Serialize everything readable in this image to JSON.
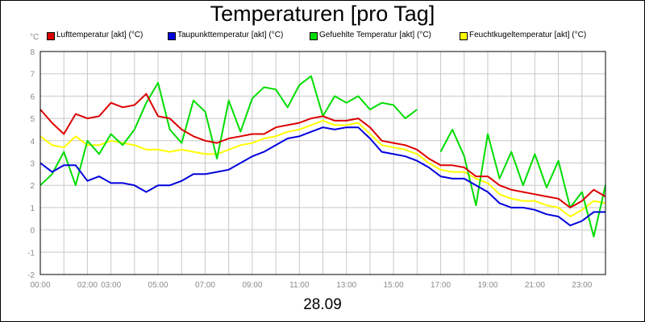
{
  "chart_data": {
    "type": "line",
    "title": "Temperaturen [pro Tag]",
    "unit_label": "°C",
    "date_label": "28.09",
    "ylim": [
      -2,
      8
    ],
    "y_ticks": [
      8,
      7,
      6,
      5,
      4,
      3,
      2,
      1,
      0,
      -1,
      -2
    ],
    "xlim_hours": [
      0,
      24
    ],
    "x_ticks": [
      {
        "hour": 0,
        "label": "00:00"
      },
      {
        "hour": 2,
        "label": "02:00"
      },
      {
        "hour": 3,
        "label": "03:00"
      },
      {
        "hour": 5,
        "label": "05:00"
      },
      {
        "hour": 7,
        "label": "07:00"
      },
      {
        "hour": 9,
        "label": "09:00"
      },
      {
        "hour": 11,
        "label": "11:00"
      },
      {
        "hour": 13,
        "label": "13:00"
      },
      {
        "hour": 15,
        "label": "15:00"
      },
      {
        "hour": 17,
        "label": "17:00"
      },
      {
        "hour": 19,
        "label": "19:00"
      },
      {
        "hour": 21,
        "label": "21:00"
      },
      {
        "hour": 23,
        "label": "23:00"
      }
    ],
    "grid": true,
    "series": [
      {
        "name": "Lufttemperatur [akt] (°C)",
        "color": "#dd0000",
        "hours": [
          0,
          0.5,
          1,
          1.5,
          2,
          2.5,
          3,
          3.5,
          4,
          4.5,
          5,
          5.5,
          6,
          6.5,
          7,
          7.5,
          8,
          8.5,
          9,
          9.5,
          10,
          10.5,
          11,
          11.5,
          12,
          12.5,
          13,
          13.5,
          14,
          14.5,
          15,
          15.5,
          16,
          16.5,
          17,
          17.5,
          18,
          18.5,
          19,
          19.5,
          20,
          20.5,
          21,
          21.5,
          22,
          22.5,
          23,
          23.5,
          24
        ],
        "values": [
          5.4,
          4.8,
          4.3,
          5.2,
          5.0,
          5.1,
          5.7,
          5.5,
          5.6,
          6.1,
          5.1,
          5.0,
          4.5,
          4.2,
          4.0,
          3.9,
          4.1,
          4.2,
          4.3,
          4.3,
          4.6,
          4.7,
          4.8,
          5.0,
          5.1,
          4.9,
          4.9,
          5.0,
          4.6,
          4.0,
          3.9,
          3.8,
          3.6,
          3.2,
          2.9,
          2.9,
          2.8,
          2.4,
          2.4,
          2.0,
          1.8,
          1.7,
          1.6,
          1.5,
          1.4,
          1.0,
          1.3,
          1.8,
          1.5
        ]
      },
      {
        "name": "Taupunkttemperatur [akt] (°C)",
        "color": "#0000dd",
        "hours": [
          0,
          0.5,
          1,
          1.5,
          2,
          2.5,
          3,
          3.5,
          4,
          4.5,
          5,
          5.5,
          6,
          6.5,
          7,
          7.5,
          8,
          8.5,
          9,
          9.5,
          10,
          10.5,
          11,
          11.5,
          12,
          12.5,
          13,
          13.5,
          14,
          14.5,
          15,
          15.5,
          16,
          16.5,
          17,
          17.5,
          18,
          18.5,
          19,
          19.5,
          20,
          20.5,
          21,
          21.5,
          22,
          22.5,
          23,
          23.5,
          24
        ],
        "values": [
          3.0,
          2.6,
          2.9,
          2.9,
          2.2,
          2.4,
          2.1,
          2.1,
          2.0,
          1.7,
          2.0,
          2.0,
          2.2,
          2.5,
          2.5,
          2.6,
          2.7,
          3.0,
          3.3,
          3.5,
          3.8,
          4.1,
          4.2,
          4.4,
          4.6,
          4.5,
          4.6,
          4.6,
          4.1,
          3.5,
          3.4,
          3.3,
          3.1,
          2.8,
          2.4,
          2.3,
          2.3,
          2.0,
          1.7,
          1.2,
          1.0,
          1.0,
          0.9,
          0.7,
          0.6,
          0.2,
          0.4,
          0.8,
          0.8
        ]
      },
      {
        "name": "Gefuehlte Temperatur [akt] (°C)",
        "color": "#00dd00",
        "hours": [
          0,
          0.5,
          1,
          1.5,
          2,
          2.5,
          3,
          3.5,
          4,
          4.5,
          5,
          5.5,
          6,
          6.5,
          7,
          7.5,
          8,
          8.5,
          9,
          9.5,
          10,
          10.5,
          11,
          11.5,
          12,
          12.5,
          13,
          13.5,
          14,
          14.5,
          15,
          15.5,
          16
        ],
        "values": [
          2.0,
          2.5,
          3.5,
          2.0,
          4.0,
          3.4,
          4.3,
          3.8,
          4.5,
          5.7,
          6.6,
          4.5,
          3.9,
          5.8,
          5.3,
          3.2,
          5.8,
          4.4,
          5.9,
          6.4,
          6.3,
          5.5,
          6.5,
          6.9,
          5.1,
          6.0,
          5.7,
          6.0,
          5.4,
          5.7,
          5.6,
          5.0,
          5.4
        ],
        "hours2": [
          17,
          17.5,
          18,
          18.5,
          19,
          19.5,
          20,
          20.5,
          21,
          21.5,
          22,
          22.5,
          23,
          23.5,
          24
        ],
        "values2": [
          3.5,
          4.5,
          3.3,
          1.1,
          4.3,
          2.3,
          3.5,
          2.0,
          3.4,
          1.9,
          3.1,
          1.0,
          1.7,
          -0.3,
          2.0
        ]
      },
      {
        "name": "Feuchtkugeltemperatur [akt] (°C)",
        "color": "#ffff00",
        "hours": [
          0,
          0.5,
          1,
          1.5,
          2,
          2.5,
          3,
          3.5,
          4,
          4.5,
          5,
          5.5,
          6,
          6.5,
          7,
          7.5,
          8,
          8.5,
          9,
          9.5,
          10,
          10.5,
          11,
          11.5,
          12,
          12.5,
          13,
          13.5,
          14,
          14.5,
          15,
          15.5,
          16,
          16.5,
          17,
          17.5,
          18,
          18.5,
          19,
          19.5,
          20,
          20.5,
          21,
          21.5,
          22,
          22.5,
          23,
          23.5,
          24
        ],
        "values": [
          4.2,
          3.8,
          3.7,
          4.2,
          3.8,
          3.8,
          4.0,
          3.9,
          3.8,
          3.6,
          3.6,
          3.5,
          3.6,
          3.5,
          3.4,
          3.4,
          3.6,
          3.8,
          3.9,
          4.1,
          4.2,
          4.4,
          4.5,
          4.7,
          4.9,
          4.7,
          4.7,
          4.8,
          4.3,
          3.8,
          3.7,
          3.6,
          3.4,
          3.0,
          2.7,
          2.6,
          2.6,
          2.3,
          2.1,
          1.6,
          1.4,
          1.3,
          1.3,
          1.1,
          1.0,
          0.6,
          0.9,
          1.3,
          1.2
        ]
      }
    ]
  }
}
